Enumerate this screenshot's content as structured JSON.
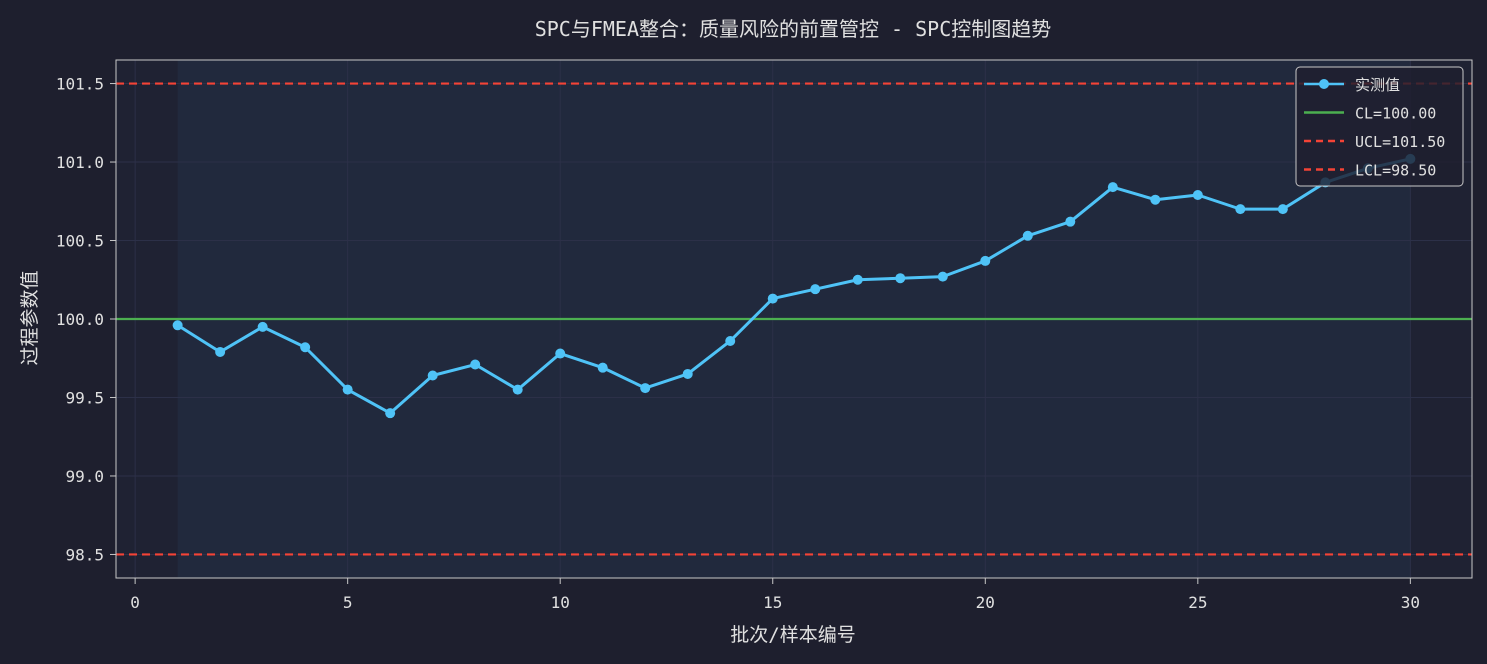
{
  "chart_data": {
    "type": "line",
    "title": "SPC与FMEA整合：质量风险的前置管控 - SPC控制图趋势",
    "xlabel": "批次/样本编号",
    "ylabel": "过程参数值",
    "xlim": [
      -0.45,
      31.45
    ],
    "ylim": [
      98.35,
      101.65
    ],
    "x_ticks": [
      0,
      5,
      10,
      15,
      20,
      25,
      30
    ],
    "x_tick_labels": [
      "0",
      "5",
      "10",
      "15",
      "20",
      "25",
      "30"
    ],
    "y_ticks": [
      98.5,
      99.0,
      99.5,
      100.0,
      100.5,
      101.0,
      101.5
    ],
    "y_tick_labels": [
      "98.5",
      "99.0",
      "99.5",
      "100.0",
      "100.5",
      "101.0",
      "101.5"
    ],
    "grid": true,
    "legend_position": "top-right",
    "series": [
      {
        "name": "实测值",
        "color": "#4fc3f7",
        "x": [
          1,
          2,
          3,
          4,
          5,
          6,
          7,
          8,
          9,
          10,
          11,
          12,
          13,
          14,
          15,
          16,
          17,
          18,
          19,
          20,
          21,
          22,
          23,
          24,
          25,
          26,
          27,
          28,
          29,
          30
        ],
        "y": [
          99.96,
          99.79,
          99.95,
          99.82,
          99.55,
          99.4,
          99.64,
          99.71,
          99.55,
          99.78,
          99.69,
          99.56,
          99.65,
          99.86,
          100.13,
          100.19,
          100.25,
          100.26,
          100.27,
          100.37,
          100.53,
          100.62,
          100.84,
          100.76,
          100.79,
          100.7,
          100.7,
          100.87,
          100.96,
          101.02
        ]
      }
    ],
    "reference_lines": [
      {
        "name": "CL=100.00",
        "value": 100.0,
        "color": "#4caf50",
        "style": "solid"
      },
      {
        "name": "UCL=101.50",
        "value": 101.5,
        "color": "#f44336",
        "style": "dashed"
      },
      {
        "name": "LCL=98.50",
        "value": 98.5,
        "color": "#f44336",
        "style": "dashed"
      }
    ],
    "colors": {
      "background": "#1e1f2e",
      "plot_area": "#1f2233",
      "shaded_range": "#222a40",
      "axis": "#c8c8c8",
      "text": "#e0e0e0",
      "grid": "#2c3048"
    }
  }
}
